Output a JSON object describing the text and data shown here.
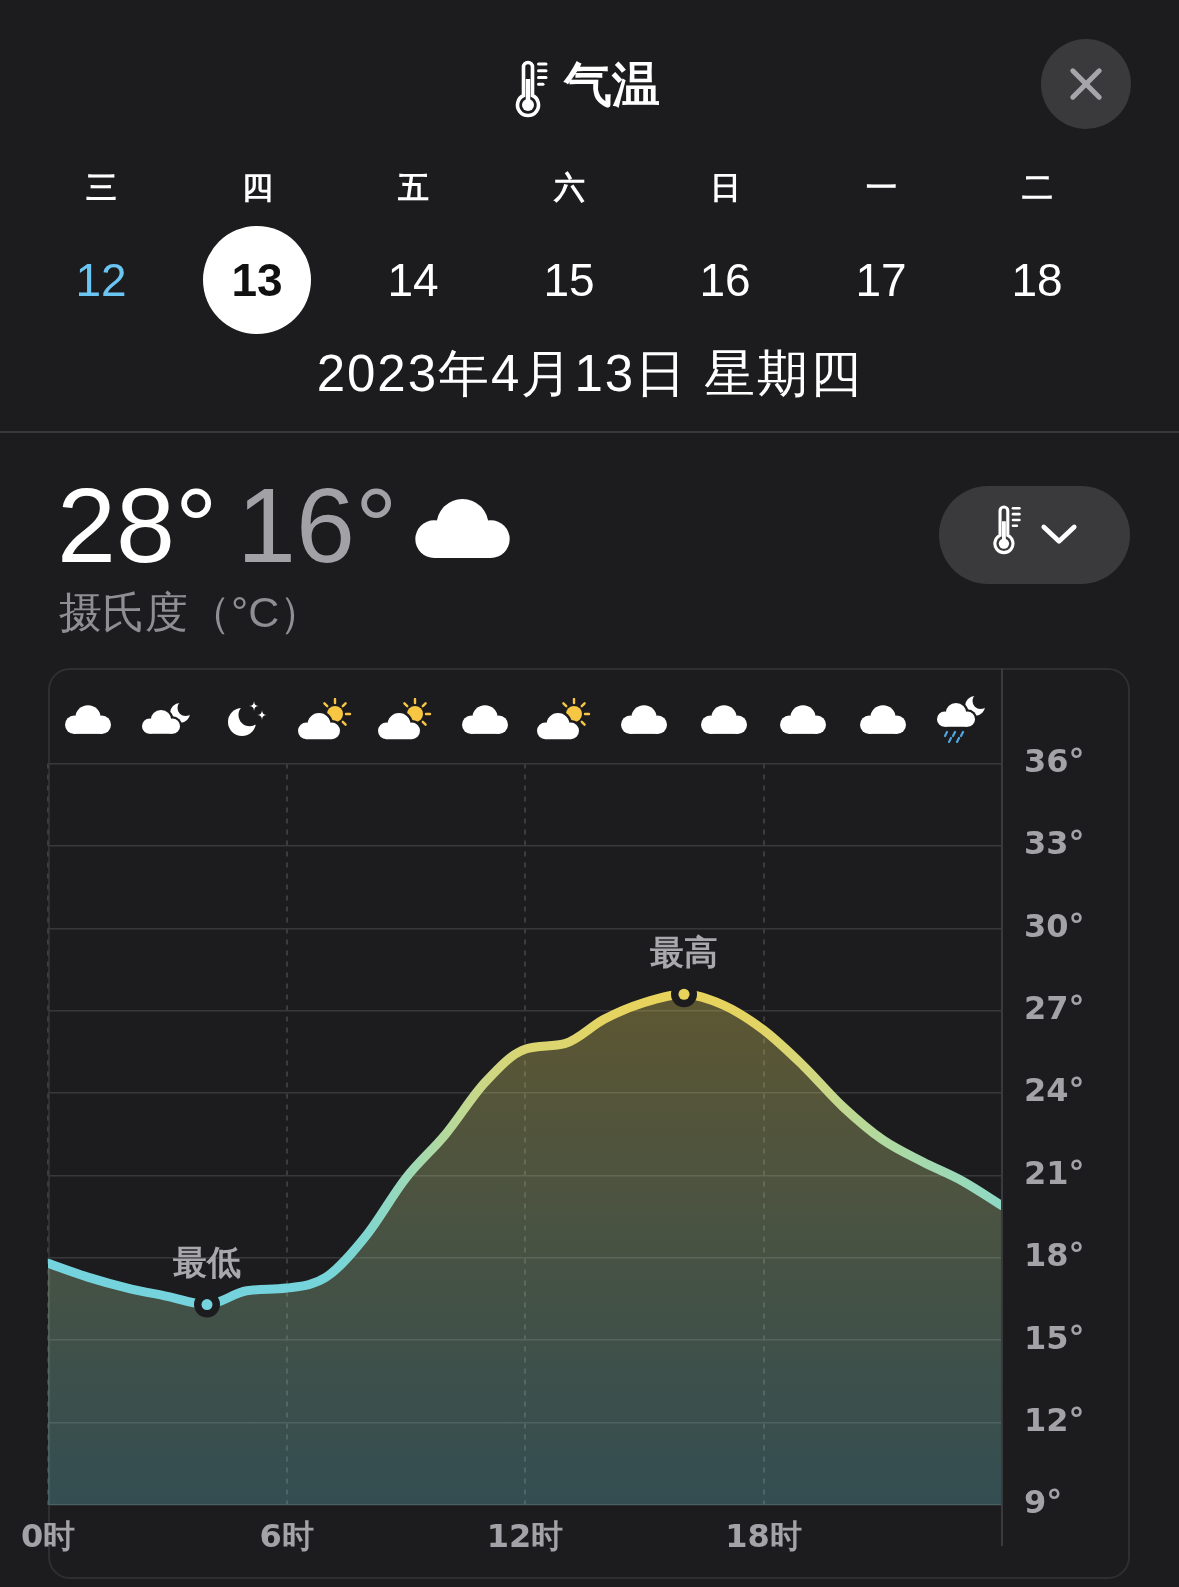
{
  "chart_data": {
    "type": "area",
    "title": "气温",
    "subtitle": "2023年4月13日 星期四",
    "x": [
      0,
      1,
      2,
      3,
      4,
      5,
      6,
      7,
      8,
      9,
      10,
      11,
      12,
      13,
      14,
      15,
      16,
      17,
      18,
      19,
      20,
      21,
      22,
      23,
      24
    ],
    "values": [
      17.8,
      17.3,
      16.9,
      16.6,
      16.3,
      16.8,
      16.9,
      17.3,
      18.8,
      20.9,
      22.5,
      24.4,
      25.6,
      25.8,
      26.7,
      27.3,
      27.6,
      27.2,
      26.3,
      25.0,
      23.5,
      22.3,
      21.5,
      20.8,
      19.9
    ],
    "colors": [
      "#74d3dc",
      "#74d3dc",
      "#74d3dc",
      "#74d3dc",
      "#74d3dc",
      "#74d3dc",
      "#74d3dc",
      "#76d4da",
      "#80d6cf",
      "#9bd9b8",
      "#b4d99d",
      "#ccd784",
      "#dbd571",
      "#ddd56e",
      "#e4d462",
      "#e7d35d",
      "#e8d35b",
      "#e6d35e",
      "#e1d466",
      "#d5d67a",
      "#c0d890",
      "#b1d9a0",
      "#a5d9ad",
      "#9ad9b9",
      "#8ed8c5"
    ],
    "xlim": [
      0,
      24
    ],
    "xticks": [
      {
        "value": 0,
        "label": "0时"
      },
      {
        "value": 6,
        "label": "6时"
      },
      {
        "value": 12,
        "label": "12时"
      },
      {
        "value": 18,
        "label": "18时"
      }
    ],
    "ylim": [
      9,
      36
    ],
    "yticks": [
      {
        "value": 9,
        "label": "9°"
      },
      {
        "value": 12,
        "label": "12°"
      },
      {
        "value": 15,
        "label": "15°"
      },
      {
        "value": 18,
        "label": "18°"
      },
      {
        "value": 21,
        "label": "21°"
      },
      {
        "value": 24,
        "label": "24°"
      },
      {
        "value": 27,
        "label": "27°"
      },
      {
        "value": 30,
        "label": "30°"
      },
      {
        "value": 33,
        "label": "33°"
      },
      {
        "value": 36,
        "label": "36°"
      }
    ],
    "grid": true,
    "marker": "none",
    "line_style": "solid",
    "annotations": [
      "三",
      "12",
      "四",
      "13",
      "五",
      "14",
      "六",
      "15",
      "日",
      "16",
      "一",
      "17",
      "二",
      "18",
      "28°",
      "16°",
      "摄氏度（°C）",
      {
        "text": "最低",
        "x": 4,
        "y": 16.3
      },
      {
        "text": "最高",
        "x": 16,
        "y": 27.6
      }
    ]
  }
}
